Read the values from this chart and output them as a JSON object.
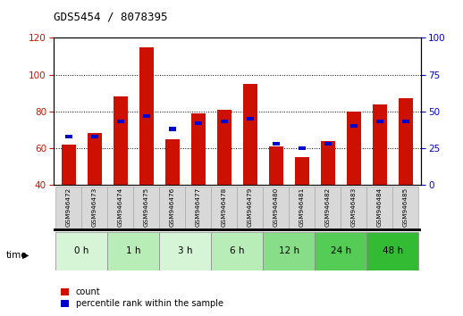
{
  "title": "GDS5454 / 8078395",
  "samples": [
    "GSM946472",
    "GSM946473",
    "GSM946474",
    "GSM946475",
    "GSM946476",
    "GSM946477",
    "GSM946478",
    "GSM946479",
    "GSM946480",
    "GSM946481",
    "GSM946482",
    "GSM946483",
    "GSM946484",
    "GSM946485"
  ],
  "count_values": [
    62,
    68,
    88,
    115,
    65,
    79,
    81,
    95,
    61,
    55,
    64,
    80,
    84,
    87
  ],
  "percentile_values": [
    33,
    33,
    43,
    47,
    38,
    42,
    43,
    45,
    28,
    25,
    28,
    40,
    43,
    43
  ],
  "time_groups": [
    {
      "label": "0 h",
      "start": 0,
      "end": 1,
      "color": "#d6f5d6"
    },
    {
      "label": "1 h",
      "start": 2,
      "end": 3,
      "color": "#b8edb8"
    },
    {
      "label": "3 h",
      "start": 4,
      "end": 5,
      "color": "#d6f5d6"
    },
    {
      "label": "6 h",
      "start": 6,
      "end": 7,
      "color": "#b8edb8"
    },
    {
      "label": "12 h",
      "start": 8,
      "end": 9,
      "color": "#88dd88"
    },
    {
      "label": "24 h",
      "start": 10,
      "end": 11,
      "color": "#55cc55"
    },
    {
      "label": "48 h",
      "start": 12,
      "end": 13,
      "color": "#33bb33"
    }
  ],
  "ylim_left": [
    40,
    120
  ],
  "ylim_right": [
    0,
    100
  ],
  "bar_color": "#cc1100",
  "blue_color": "#0000cc",
  "bg_color": "#ffffff",
  "bar_width": 0.55,
  "left_yticks": [
    40,
    60,
    80,
    100,
    120
  ],
  "right_yticks": [
    0,
    25,
    50,
    75,
    100
  ],
  "legend_count": "count",
  "legend_pct": "percentile rank within the sample"
}
